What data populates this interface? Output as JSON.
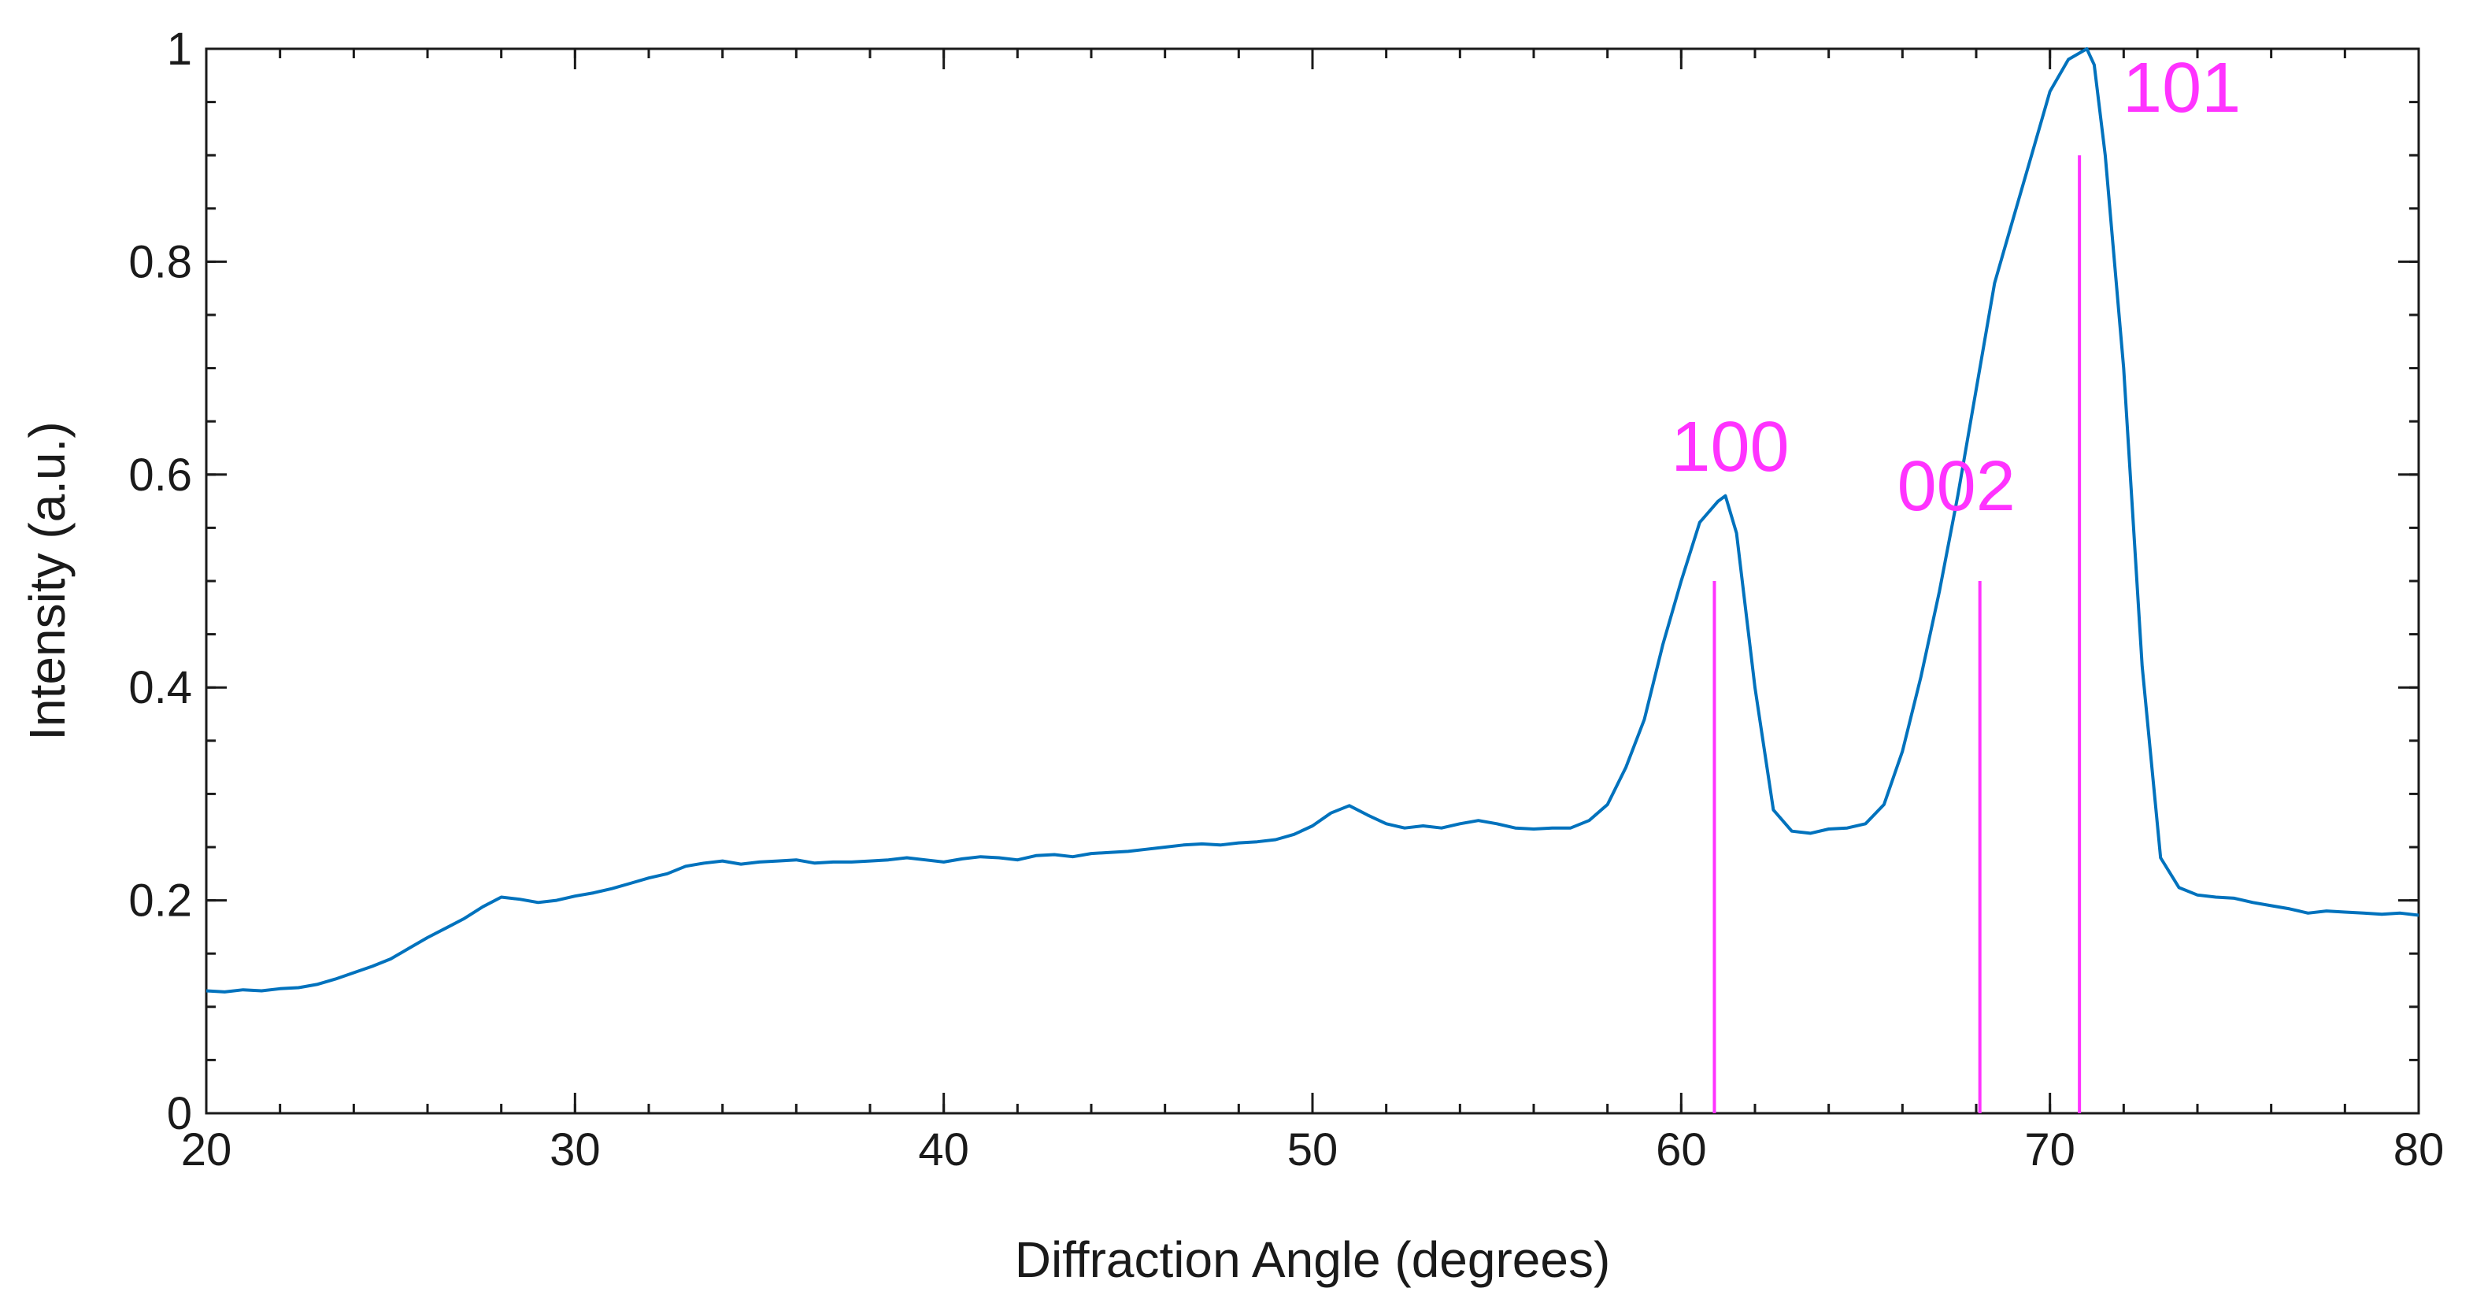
{
  "chart_data": {
    "type": "line",
    "title": "",
    "xlabel": "Diffraction Angle (degrees)",
    "ylabel": "Intensity (a.u.)",
    "xlim": [
      20,
      80
    ],
    "ylim": [
      0,
      1
    ],
    "x_ticks": [
      20,
      30,
      40,
      50,
      60,
      70,
      80
    ],
    "x_tick_labels": [
      "20",
      "30",
      "40",
      "50",
      "60",
      "70",
      "80"
    ],
    "x_minor_step": 2,
    "y_ticks": [
      0,
      0.2,
      0.4,
      0.6,
      0.8,
      1
    ],
    "y_tick_labels": [
      "0",
      "0.2",
      "0.4",
      "0.6",
      "0.8",
      "1"
    ],
    "y_minor_step": 0.05,
    "grid": false,
    "line_color": "#0072bd",
    "reference_color": "#ff33ff",
    "series": [
      {
        "x": [
          20,
          20.5,
          21,
          21.5,
          22,
          22.5,
          23,
          23.5,
          24,
          24.5,
          25,
          25.5,
          26,
          26.5,
          27,
          27.5,
          28,
          28.5,
          29,
          29.5,
          30,
          30.5,
          31,
          31.5,
          32,
          32.5,
          33,
          33.5,
          34,
          34.5,
          35,
          35.5,
          36,
          36.5,
          37,
          37.5,
          38,
          38.5,
          39,
          39.5,
          40,
          40.5,
          41,
          41.5,
          42,
          42.5,
          43,
          43.5,
          44,
          44.5,
          45,
          45.5,
          46,
          46.5,
          47,
          47.5,
          48,
          48.5,
          49,
          49.5,
          50,
          50.5,
          51,
          51.5,
          52,
          52.5,
          53,
          53.5,
          54,
          54.5,
          55,
          55.5,
          56,
          56.5,
          57,
          57.5,
          58,
          58.5,
          59,
          59.5,
          60,
          60.5,
          61,
          61.2,
          61.5,
          62,
          62.5,
          63,
          63.5,
          64,
          64.5,
          65,
          65.5,
          66,
          66.5,
          67,
          67.5,
          68,
          68.5,
          69,
          69.5,
          70,
          70.5,
          71,
          71.2,
          71.5,
          72,
          72.5,
          73,
          73.5,
          74,
          74.5,
          75,
          75.5,
          76,
          76.5,
          77,
          77.5,
          78,
          78.5,
          79,
          79.5,
          80
        ],
        "values": [
          0.115,
          0.114,
          0.116,
          0.115,
          0.117,
          0.118,
          0.121,
          0.126,
          0.132,
          0.138,
          0.145,
          0.155,
          0.165,
          0.174,
          0.183,
          0.194,
          0.203,
          0.201,
          0.198,
          0.2,
          0.204,
          0.207,
          0.211,
          0.216,
          0.221,
          0.225,
          0.232,
          0.235,
          0.237,
          0.234,
          0.236,
          0.237,
          0.238,
          0.235,
          0.236,
          0.236,
          0.237,
          0.238,
          0.24,
          0.238,
          0.236,
          0.239,
          0.241,
          0.24,
          0.238,
          0.242,
          0.243,
          0.241,
          0.244,
          0.245,
          0.246,
          0.248,
          0.25,
          0.252,
          0.253,
          0.252,
          0.254,
          0.255,
          0.257,
          0.262,
          0.27,
          0.282,
          0.289,
          0.28,
          0.272,
          0.268,
          0.27,
          0.268,
          0.272,
          0.275,
          0.272,
          0.268,
          0.267,
          0.268,
          0.268,
          0.275,
          0.29,
          0.325,
          0.37,
          0.44,
          0.5,
          0.555,
          0.575,
          0.58,
          0.545,
          0.4,
          0.285,
          0.265,
          0.263,
          0.267,
          0.268,
          0.272,
          0.29,
          0.34,
          0.41,
          0.49,
          0.58,
          0.68,
          0.78,
          0.84,
          0.9,
          0.96,
          0.99,
          1.0,
          0.985,
          0.9,
          0.7,
          0.42,
          0.24,
          0.212,
          0.205,
          0.203,
          0.202,
          0.198,
          0.195,
          0.192,
          0.188,
          0.19,
          0.189,
          0.188,
          0.187,
          0.188,
          0.186
        ]
      }
    ],
    "reference_lines": [
      {
        "label": "100",
        "x": 60.9,
        "height": 0.5
      },
      {
        "label": "002",
        "x": 68.1,
        "height": 0.5
      },
      {
        "label": "101",
        "x": 70.8,
        "height": 0.9
      }
    ]
  }
}
